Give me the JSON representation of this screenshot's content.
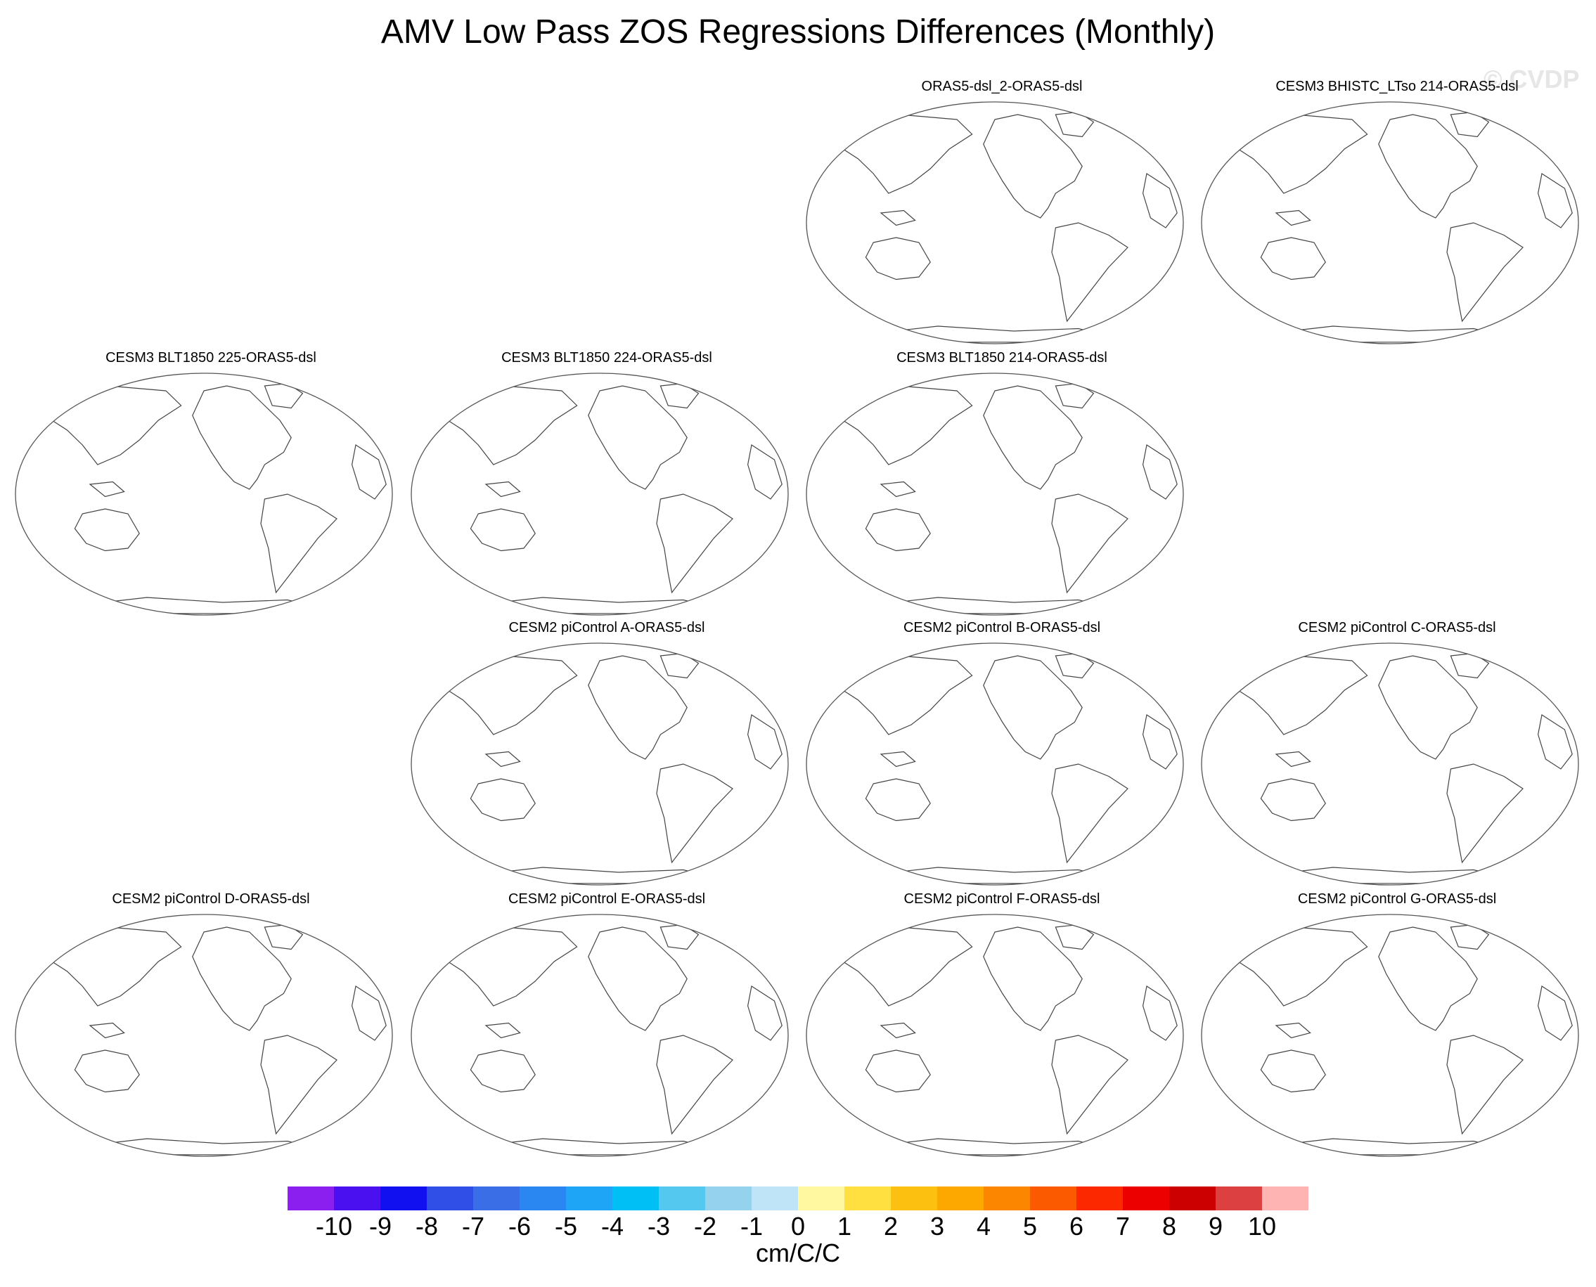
{
  "title": "AMV Low Pass ZOS Regressions Differences (Monthly)",
  "watermark": "© CVDP",
  "panels": [
    {
      "title": "ORAS5-dsl_2-ORAS5-dsl",
      "slot": 2
    },
    {
      "title": "CESM3 BHISTC_LTso 214-ORAS5-dsl",
      "slot": 3
    },
    {
      "title": "CESM3 BLT1850 225-ORAS5-dsl",
      "slot": 4
    },
    {
      "title": "CESM3 BLT1850 224-ORAS5-dsl",
      "slot": 5
    },
    {
      "title": "CESM3 BLT1850 214-ORAS5-dsl",
      "slot": 6
    },
    {
      "title": "CESM2 piControl A-ORAS5-dsl",
      "slot": 9
    },
    {
      "title": "CESM2 piControl B-ORAS5-dsl",
      "slot": 10
    },
    {
      "title": "CESM2 piControl C-ORAS5-dsl",
      "slot": 11
    },
    {
      "title": "CESM2 piControl D-ORAS5-dsl",
      "slot": 12
    },
    {
      "title": "CESM2 piControl E-ORAS5-dsl",
      "slot": 13
    },
    {
      "title": "CESM2 piControl F-ORAS5-dsl",
      "slot": 14
    },
    {
      "title": "CESM2 piControl G-ORAS5-dsl",
      "slot": 15
    }
  ],
  "colorbar": {
    "units": "cm/C/C",
    "labels": [
      "-10",
      "-9",
      "-8",
      "-7",
      "-6",
      "-5",
      "-4",
      "-3",
      "-2",
      "-1",
      "0",
      "1",
      "2",
      "3",
      "4",
      "5",
      "6",
      "7",
      "8",
      "9",
      "10"
    ],
    "colors": [
      "#8a1ff0",
      "#4a10f0",
      "#1010f0",
      "#2f4fe6",
      "#3a6ee6",
      "#2a86f0",
      "#1ea5f5",
      "#00bff5",
      "#55c8f0",
      "#95d2ee",
      "#bfe4f7",
      "#fff8a0",
      "#ffe040",
      "#fcc010",
      "#fca800",
      "#fc8600",
      "#fc5a00",
      "#fc2800",
      "#ec0000",
      "#cc0000",
      "#dc4040",
      "#ffb4b4"
    ]
  }
}
